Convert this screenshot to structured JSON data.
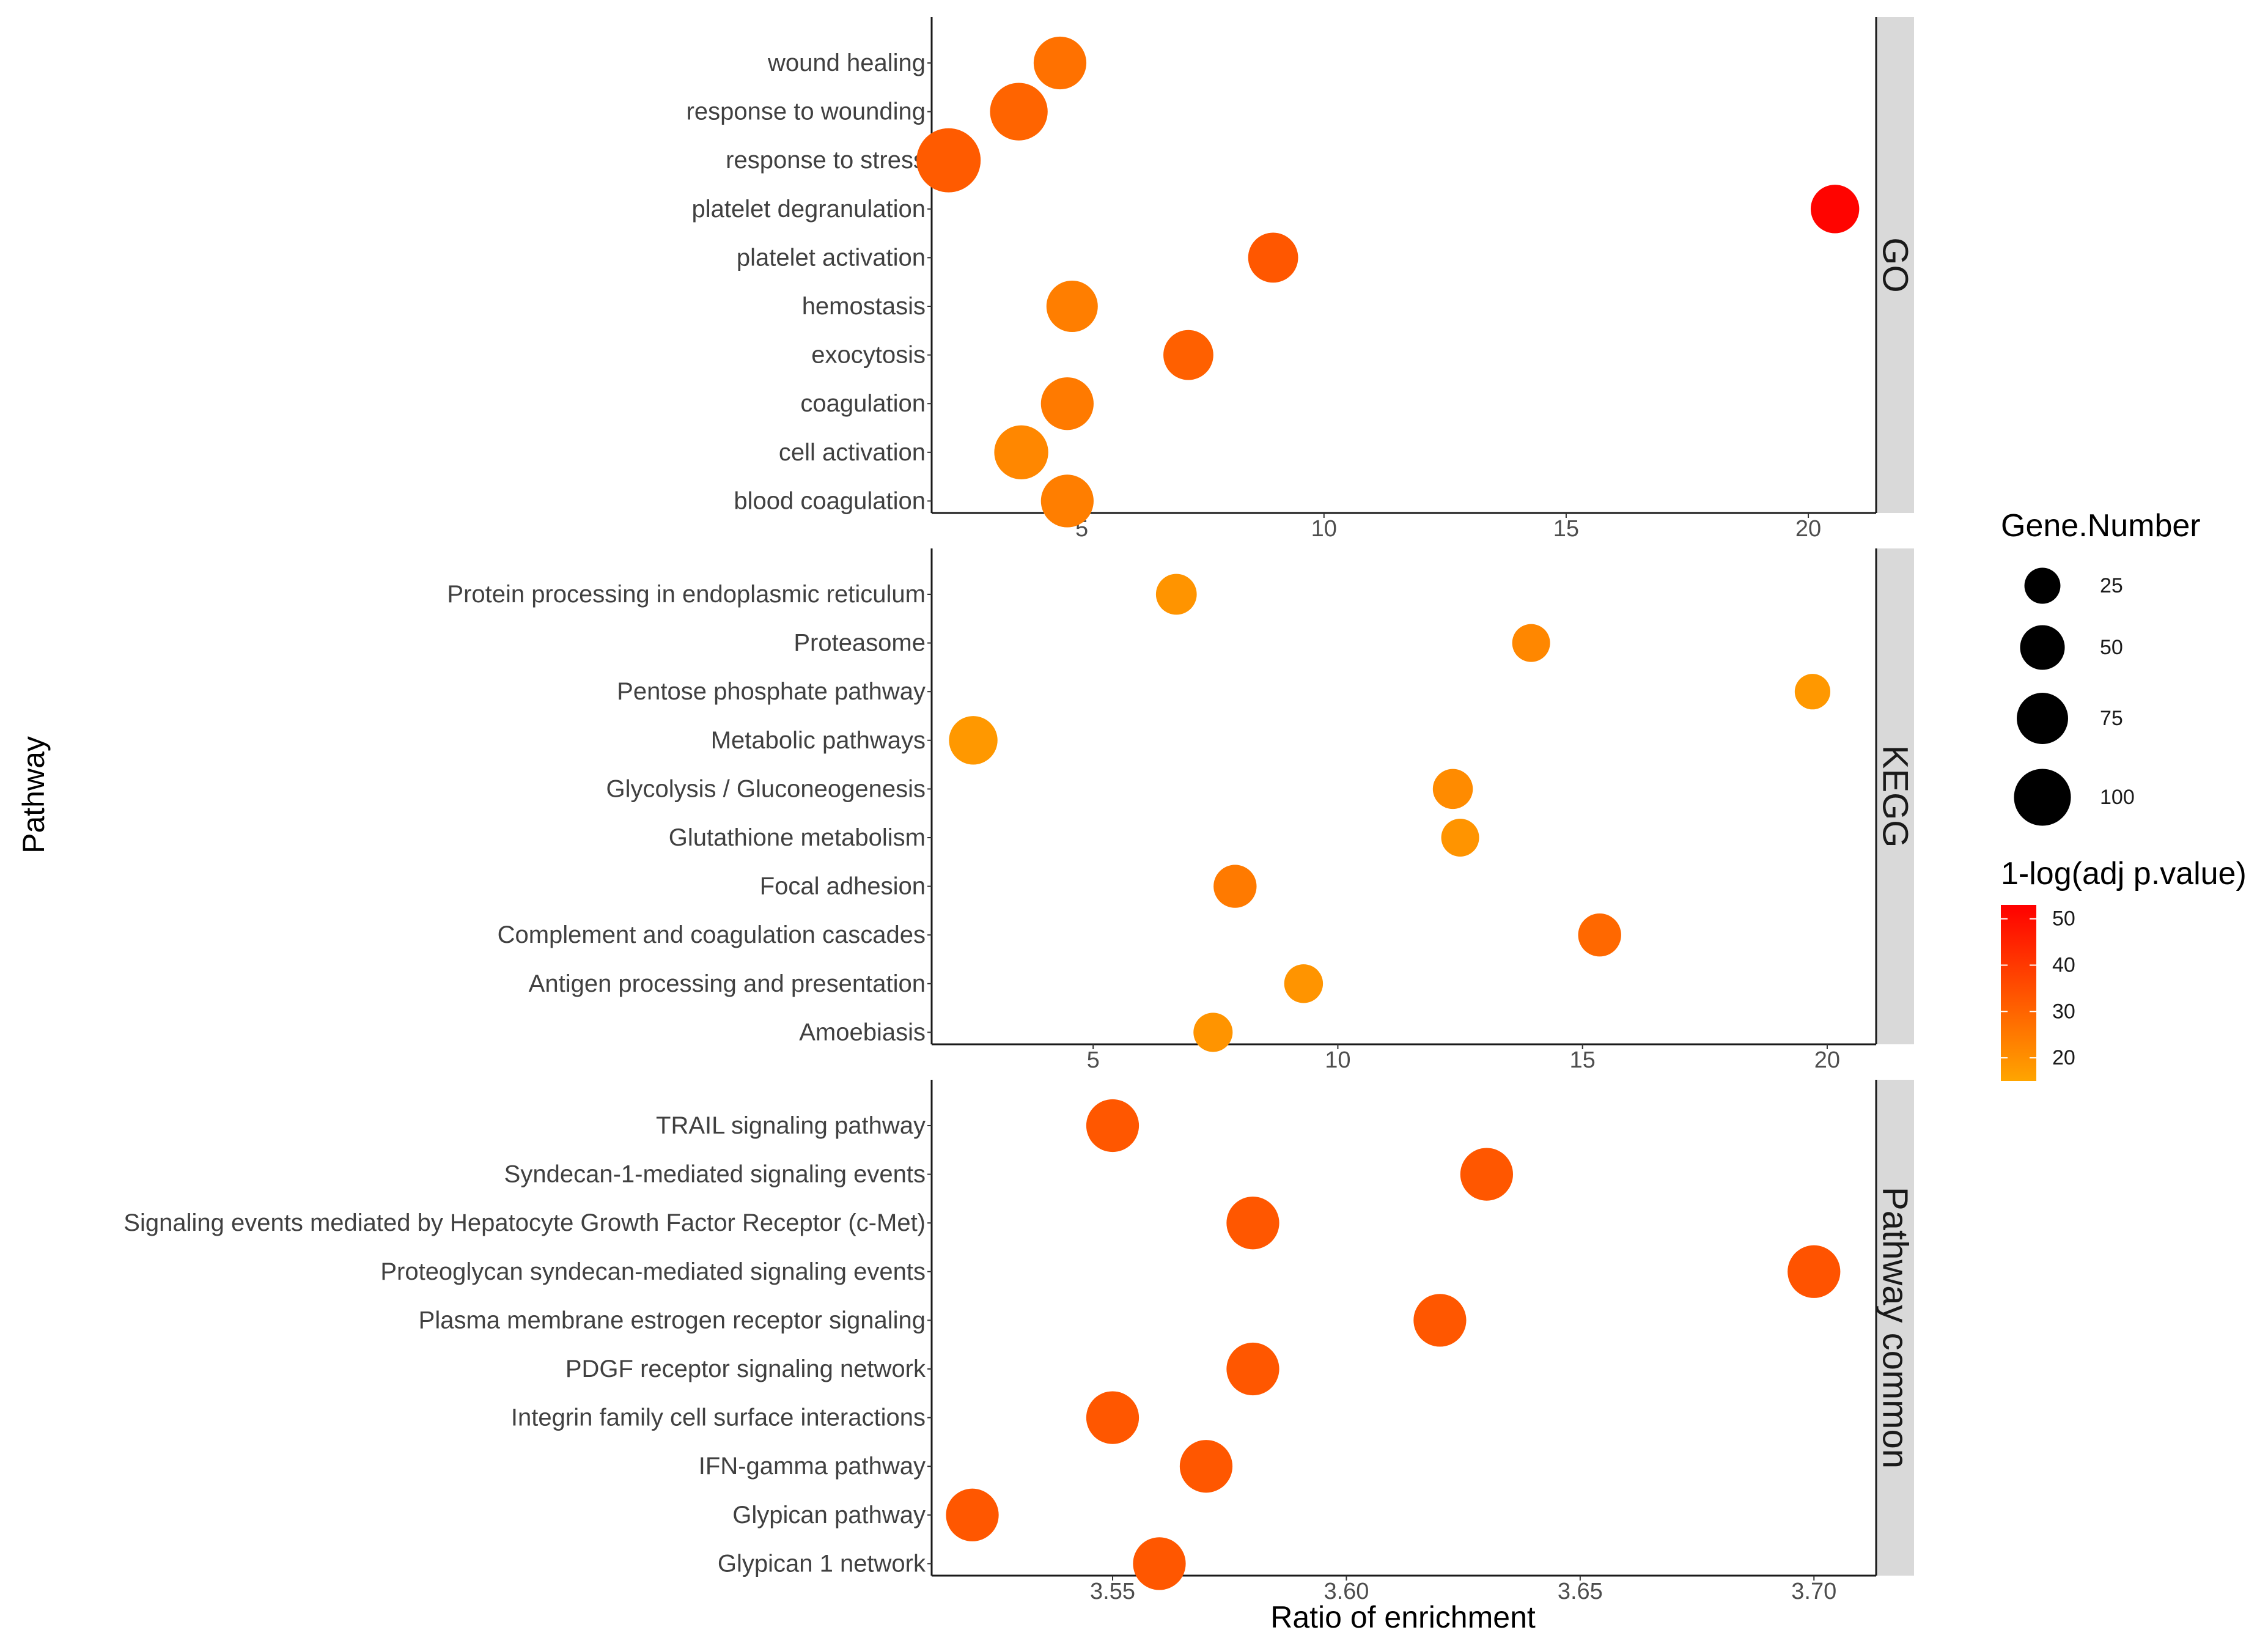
{
  "chart_data": {
    "type": "scatter",
    "subtype": "faceted-bubble",
    "xlabel": "Ratio of enrichment",
    "ylabel": "Pathway",
    "size_legend": {
      "title": "Gene.Number",
      "breaks": [
        25,
        50,
        75,
        100
      ]
    },
    "color_legend": {
      "title": "1-log(adj p.value)",
      "breaks": [
        20,
        30,
        40,
        50
      ],
      "range": [
        15,
        53
      ],
      "low": "#ffa500",
      "high": "#ff0000"
    },
    "facets": [
      {
        "name": "GO",
        "xlim": [
          1.9,
          21.4
        ],
        "xticks": [
          5,
          10,
          15,
          20
        ],
        "tick_labels": [
          "5",
          "10",
          "15",
          "20"
        ],
        "categories": [
          "wound healing",
          "response to wounding",
          "response to stress",
          "platelet degranulation",
          "platelet activation",
          "hemostasis",
          "exocytosis",
          "coagulation",
          "cell activation",
          "blood coagulation"
        ],
        "x": [
          4.55,
          3.7,
          2.25,
          20.55,
          8.95,
          4.8,
          7.2,
          4.7,
          3.75,
          4.7
        ],
        "size": [
          70,
          90,
          120,
          55,
          60,
          65,
          60,
          70,
          75,
          70
        ],
        "color_value": [
          27,
          30,
          32,
          52,
          33,
          24,
          31,
          25,
          22,
          24
        ]
      },
      {
        "name": "KEGG",
        "xlim": [
          1.7,
          21.0
        ],
        "xticks": [
          5,
          10,
          15,
          20
        ],
        "tick_labels": [
          "5",
          "10",
          "15",
          "20"
        ],
        "categories": [
          "Protein processing in endoplasmic reticulum",
          "Proteasome",
          "Pentose phosphate pathway",
          "Metabolic pathways",
          "Glycolysis / Gluconeogenesis",
          "Glutathione metabolism",
          "Focal adhesion",
          "Complement and coagulation cascades",
          "Antigen processing and presentation",
          "Amoebiasis"
        ],
        "x": [
          6.7,
          13.95,
          19.7,
          2.55,
          12.35,
          12.5,
          7.9,
          15.35,
          9.3,
          7.45
        ],
        "size": [
          32,
          25,
          20,
          55,
          30,
          25,
          38,
          38,
          27,
          28
        ],
        "color_value": [
          19,
          22,
          18,
          18,
          21,
          19,
          25,
          29,
          19,
          19
        ]
      },
      {
        "name": "Pathway common",
        "xlim": [
          3.5113,
          3.7133
        ],
        "xticks": [
          3.55,
          3.6,
          3.65,
          3.7
        ],
        "tick_labels": [
          "3.55",
          "3.60",
          "3.65",
          "3.70"
        ],
        "categories": [
          "TRAIL signaling pathway",
          "Syndecan-1-mediated signaling events",
          "Signaling events mediated by Hepatocyte Growth Factor Receptor (c-Met)",
          "Proteoglycan syndecan-mediated signaling events",
          "Plasma membrane estrogen receptor signaling",
          "PDGF receptor signaling network",
          "Integrin family cell surface interactions",
          "IFN-gamma pathway",
          "Glypican pathway",
          "Glypican 1 network"
        ],
        "x": [
          3.55,
          3.63,
          3.58,
          3.7,
          3.62,
          3.58,
          3.55,
          3.57,
          3.52,
          3.56
        ],
        "size": [
          70,
          70,
          70,
          70,
          70,
          70,
          70,
          70,
          70,
          70
        ],
        "color_value": [
          33,
          33,
          33,
          34,
          33,
          33,
          33,
          33,
          33,
          33
        ]
      }
    ]
  }
}
